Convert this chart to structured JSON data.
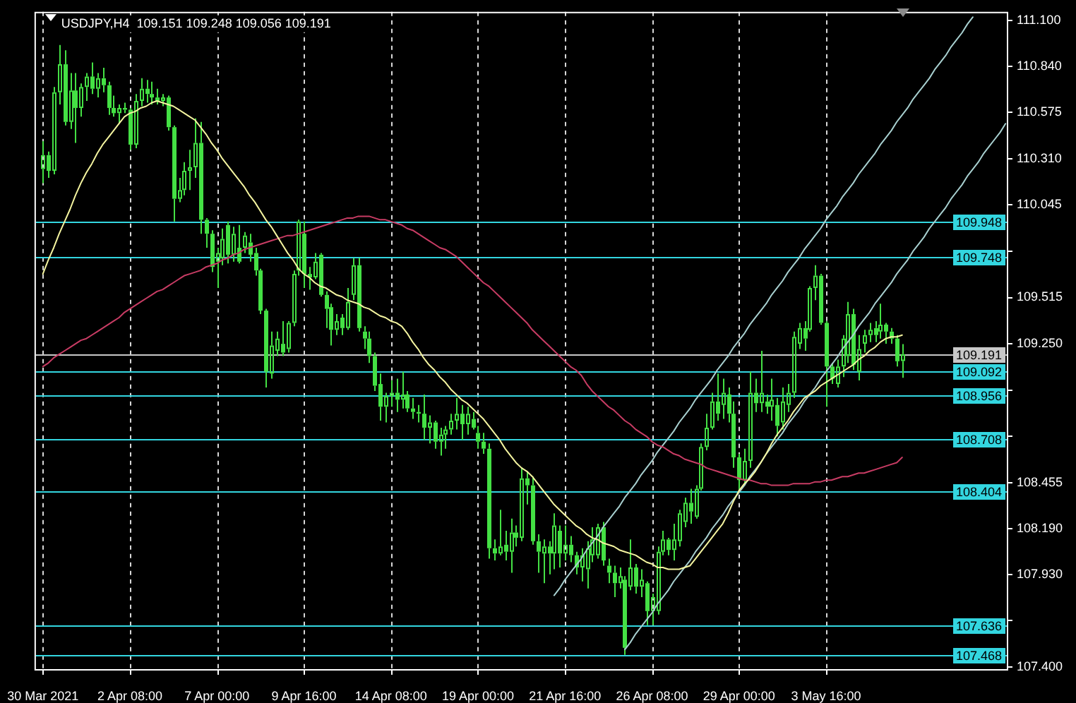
{
  "chart_data": {
    "type": "candlestick",
    "title": "USDJPY,H4  109.151 109.248 109.056 109.191",
    "categories": [
      "30 Mar 2021",
      null,
      null,
      null,
      null,
      null,
      null,
      null,
      null,
      null,
      null,
      null,
      null,
      null,
      null,
      null,
      "2 Apr 08:00",
      null,
      null,
      null,
      null,
      null,
      null,
      null,
      null,
      null,
      null,
      null,
      null,
      null,
      null,
      null,
      "7 Apr 00:00",
      null,
      null,
      null,
      null,
      null,
      null,
      null,
      null,
      null,
      null,
      null,
      null,
      null,
      null,
      null,
      "9 Apr 16:00",
      null,
      null,
      null,
      null,
      null,
      null,
      null,
      null,
      null,
      null,
      null,
      null,
      null,
      null,
      null,
      "14 Apr 08:00",
      null,
      null,
      null,
      null,
      null,
      null,
      null,
      null,
      null,
      null,
      null,
      null,
      null,
      null,
      null,
      "19 Apr 00:00",
      null,
      null,
      null,
      null,
      null,
      null,
      null,
      null,
      null,
      null,
      null,
      null,
      null,
      null,
      null,
      "21 Apr 16:00",
      null,
      null,
      null,
      null,
      null,
      null,
      null,
      null,
      null,
      null,
      null,
      null,
      null,
      null,
      null,
      "26 Apr 08:00",
      null,
      null,
      null,
      null,
      null,
      null,
      null,
      null,
      null,
      null,
      null,
      null,
      null,
      null,
      null,
      "29 Apr 00:00",
      null,
      null,
      null,
      null,
      null,
      null,
      null,
      null,
      null,
      null,
      null,
      null,
      null,
      null,
      null,
      "3 May 16:00",
      null,
      null,
      null,
      null,
      null,
      null,
      null,
      null,
      null,
      null,
      null,
      null,
      null,
      null,
      null,
      null,
      null,
      null,
      null,
      null,
      null,
      null,
      null,
      null,
      null,
      null,
      null,
      null,
      null,
      null,
      null,
      null,
      null
    ],
    "color": "#44e044",
    "ohlc": [
      [
        110.25,
        110.41,
        110.17,
        110.33
      ],
      [
        110.33,
        110.35,
        110.2,
        110.24
      ],
      [
        110.24,
        110.72,
        110.22,
        110.69
      ],
      [
        110.69,
        110.96,
        110.62,
        110.85
      ],
      [
        110.85,
        110.93,
        110.5,
        110.52
      ],
      [
        110.52,
        110.8,
        110.48,
        110.7
      ],
      [
        110.7,
        110.8,
        110.4,
        110.6
      ],
      [
        110.6,
        110.74,
        110.55,
        110.72
      ],
      [
        110.72,
        110.8,
        110.64,
        110.78
      ],
      [
        110.78,
        110.86,
        110.68,
        110.71
      ],
      [
        110.71,
        110.8,
        110.66,
        110.77
      ],
      [
        110.77,
        110.83,
        110.69,
        110.73
      ],
      [
        110.73,
        110.75,
        110.56,
        110.6
      ],
      [
        110.6,
        110.67,
        110.55,
        110.57
      ],
      [
        110.57,
        110.62,
        110.51,
        110.6
      ],
      [
        110.6,
        110.63,
        110.57,
        110.59
      ],
      [
        110.59,
        110.6,
        110.36,
        110.39
      ],
      [
        110.39,
        110.68,
        110.37,
        110.64
      ],
      [
        110.64,
        110.77,
        110.61,
        110.71
      ],
      [
        110.71,
        110.76,
        110.63,
        110.68
      ],
      [
        110.68,
        110.75,
        110.62,
        110.66
      ],
      [
        110.66,
        110.71,
        110.62,
        110.64
      ],
      [
        110.64,
        110.68,
        110.61,
        110.66
      ],
      [
        110.66,
        110.67,
        110.47,
        110.49
      ],
      [
        110.49,
        110.5,
        109.95,
        110.08
      ],
      [
        110.08,
        110.2,
        110.06,
        110.13
      ],
      [
        110.13,
        110.29,
        110.1,
        110.24
      ],
      [
        110.24,
        110.36,
        110.13,
        110.26
      ],
      [
        110.26,
        110.54,
        110.2,
        110.4
      ],
      [
        110.4,
        110.52,
        109.88,
        109.96
      ],
      [
        109.96,
        109.97,
        109.8,
        109.88
      ],
      [
        109.88,
        109.9,
        109.66,
        109.69
      ],
      [
        109.72,
        109.8,
        109.57,
        109.77
      ],
      [
        109.74,
        109.91,
        109.7,
        109.85
      ],
      [
        109.93,
        109.95,
        109.71,
        109.76
      ],
      [
        109.76,
        109.92,
        109.72,
        109.88
      ],
      [
        109.8,
        109.93,
        109.71,
        109.72
      ],
      [
        109.8,
        109.89,
        109.77,
        109.87
      ],
      [
        109.83,
        109.88,
        109.72,
        109.76
      ],
      [
        109.77,
        109.8,
        109.64,
        109.67
      ],
      [
        109.67,
        109.68,
        109.42,
        109.44
      ],
      [
        109.44,
        109.45,
        109.0,
        109.09
      ],
      [
        109.08,
        109.32,
        109.05,
        109.24
      ],
      [
        109.21,
        109.32,
        109.18,
        109.28
      ],
      [
        109.25,
        109.38,
        109.18,
        109.2
      ],
      [
        109.22,
        109.38,
        109.2,
        109.37
      ],
      [
        109.37,
        109.67,
        109.35,
        109.65
      ],
      [
        109.67,
        109.96,
        109.64,
        109.95
      ],
      [
        109.88,
        109.95,
        109.57,
        109.65
      ],
      [
        109.65,
        109.69,
        109.56,
        109.63
      ],
      [
        109.63,
        109.77,
        109.62,
        109.72
      ],
      [
        109.76,
        109.77,
        109.52,
        109.53
      ],
      [
        109.53,
        109.55,
        109.34,
        109.45
      ],
      [
        109.46,
        109.48,
        109.24,
        109.33
      ],
      [
        109.33,
        109.42,
        109.3,
        109.38
      ],
      [
        109.4,
        109.42,
        109.3,
        109.34
      ],
      [
        109.34,
        109.57,
        109.33,
        109.49
      ],
      [
        109.53,
        109.74,
        109.5,
        109.7
      ],
      [
        109.7,
        109.74,
        109.32,
        109.34
      ],
      [
        109.32,
        109.35,
        109.22,
        109.28
      ],
      [
        109.28,
        109.32,
        109.14,
        109.18
      ],
      [
        109.18,
        109.2,
        108.98,
        109.01
      ],
      [
        109.02,
        109.08,
        108.81,
        108.89
      ],
      [
        108.89,
        108.97,
        108.8,
        108.95
      ],
      [
        108.95,
        109.04,
        108.89,
        108.97
      ],
      [
        108.97,
        109.05,
        108.86,
        108.93
      ],
      [
        108.93,
        109.09,
        108.88,
        108.96
      ],
      [
        108.96,
        108.98,
        108.86,
        108.88
      ],
      [
        108.88,
        108.94,
        108.82,
        108.86
      ],
      [
        108.86,
        108.9,
        108.8,
        108.85
      ],
      [
        108.85,
        108.96,
        108.7,
        108.77
      ],
      [
        108.77,
        108.84,
        108.68,
        108.8
      ],
      [
        108.8,
        108.81,
        108.65,
        108.69
      ],
      [
        108.69,
        108.77,
        108.61,
        108.73
      ],
      [
        108.73,
        108.78,
        108.65,
        108.76
      ],
      [
        108.76,
        108.85,
        108.73,
        108.81
      ],
      [
        108.81,
        108.94,
        108.76,
        108.85
      ],
      [
        108.85,
        108.9,
        108.7,
        108.79
      ],
      [
        108.79,
        108.89,
        108.73,
        108.85
      ],
      [
        108.82,
        108.86,
        108.76,
        108.77
      ],
      [
        108.74,
        108.78,
        108.65,
        108.69
      ],
      [
        108.69,
        108.74,
        108.62,
        108.65
      ],
      [
        108.65,
        108.68,
        108.02,
        108.08
      ],
      [
        108.08,
        108.13,
        108.01,
        108.05
      ],
      [
        108.05,
        108.3,
        108.04,
        108.09
      ],
      [
        108.1,
        108.18,
        108.01,
        108.06
      ],
      [
        108.06,
        108.25,
        107.94,
        108.17
      ],
      [
        108.17,
        108.21,
        108.09,
        108.14
      ],
      [
        108.14,
        108.54,
        108.12,
        108.48
      ],
      [
        108.48,
        108.52,
        108.33,
        108.44
      ],
      [
        108.44,
        108.49,
        108.1,
        108.12
      ],
      [
        108.12,
        108.16,
        107.94,
        108.06
      ],
      [
        108.05,
        108.13,
        107.88,
        108.09
      ],
      [
        108.09,
        108.12,
        107.93,
        108.05
      ],
      [
        108.05,
        108.28,
        107.96,
        108.21
      ],
      [
        108.18,
        108.21,
        107.97,
        108.05
      ],
      [
        108.05,
        108.21,
        108.01,
        108.1
      ],
      [
        108.1,
        108.15,
        108.0,
        108.04
      ],
      [
        108.04,
        108.06,
        107.93,
        107.97
      ],
      [
        107.97,
        108.08,
        107.89,
        108.04
      ],
      [
        107.96,
        108.12,
        107.85,
        108.08
      ],
      [
        108.04,
        108.2,
        108.0,
        108.13
      ],
      [
        108.04,
        108.22,
        108.02,
        108.2
      ],
      [
        108.2,
        108.23,
        107.98,
        108.01
      ],
      [
        107.98,
        108.02,
        107.88,
        107.94
      ],
      [
        107.94,
        107.98,
        107.8,
        107.88
      ],
      [
        107.88,
        107.97,
        107.85,
        107.92
      ],
      [
        107.9,
        107.92,
        107.47,
        107.51
      ],
      [
        107.86,
        108.13,
        107.84,
        107.97
      ],
      [
        107.97,
        107.99,
        107.82,
        107.86
      ],
      [
        107.86,
        107.96,
        107.8,
        107.9
      ],
      [
        107.88,
        107.89,
        107.64,
        107.72
      ],
      [
        107.72,
        107.82,
        107.64,
        107.8
      ],
      [
        107.72,
        108.09,
        107.7,
        108.06
      ],
      [
        108.06,
        108.18,
        108.04,
        108.13
      ],
      [
        108.13,
        108.14,
        108.04,
        108.07
      ],
      [
        108.07,
        108.22,
        108.01,
        108.13
      ],
      [
        108.12,
        108.3,
        108.09,
        108.28
      ],
      [
        108.23,
        108.37,
        108.2,
        108.34
      ],
      [
        108.34,
        108.42,
        108.22,
        108.29
      ],
      [
        108.26,
        108.44,
        108.25,
        108.42
      ],
      [
        108.42,
        108.68,
        108.41,
        108.66
      ],
      [
        108.66,
        108.85,
        108.64,
        108.77
      ],
      [
        108.77,
        108.97,
        108.76,
        108.92
      ],
      [
        108.92,
        109.08,
        108.81,
        108.85
      ],
      [
        108.9,
        109.05,
        108.82,
        108.97
      ],
      [
        108.96,
        109.0,
        108.8,
        108.85
      ],
      [
        108.85,
        108.92,
        108.54,
        108.6
      ],
      [
        108.6,
        108.62,
        108.4,
        108.47
      ],
      [
        108.47,
        108.65,
        108.44,
        108.58
      ],
      [
        108.58,
        109.09,
        108.54,
        108.97
      ],
      [
        108.97,
        109.05,
        108.86,
        108.91
      ],
      [
        108.91,
        109.21,
        108.86,
        108.97
      ],
      [
        108.92,
        108.96,
        108.85,
        108.89
      ],
      [
        108.89,
        109.05,
        108.81,
        108.93
      ],
      [
        108.9,
        108.94,
        108.72,
        108.78
      ],
      [
        108.8,
        109.0,
        108.76,
        108.92
      ],
      [
        108.9,
        109.02,
        108.86,
        108.97
      ],
      [
        108.97,
        109.32,
        108.94,
        109.29
      ],
      [
        109.25,
        109.37,
        109.22,
        109.34
      ],
      [
        109.34,
        109.38,
        109.21,
        109.28
      ],
      [
        109.33,
        109.58,
        109.32,
        109.57
      ],
      [
        109.57,
        109.7,
        109.5,
        109.64
      ],
      [
        109.64,
        109.65,
        109.36,
        109.37
      ],
      [
        109.37,
        109.38,
        108.89,
        109.12
      ],
      [
        109.12,
        109.14,
        109.02,
        109.05
      ],
      [
        109.02,
        109.16,
        109.0,
        109.12
      ],
      [
        109.12,
        109.3,
        109.06,
        109.28
      ],
      [
        109.18,
        109.49,
        109.14,
        109.42
      ],
      [
        109.42,
        109.45,
        109.1,
        109.13
      ],
      [
        109.09,
        109.3,
        109.04,
        109.22
      ],
      [
        109.25,
        109.33,
        109.2,
        109.3
      ],
      [
        109.3,
        109.37,
        109.26,
        109.33
      ],
      [
        109.34,
        109.38,
        109.26,
        109.3
      ],
      [
        109.32,
        109.48,
        109.28,
        109.36
      ],
      [
        109.36,
        109.37,
        109.25,
        109.32
      ],
      [
        109.32,
        109.34,
        109.25,
        109.28
      ],
      [
        109.28,
        109.3,
        109.12,
        109.15
      ],
      [
        109.151,
        109.248,
        109.056,
        109.191
      ],
      null,
      null,
      null,
      null,
      null,
      null,
      null,
      null,
      null,
      null,
      null,
      null,
      null,
      null,
      null,
      null,
      null,
      null,
      null
    ],
    "series": [
      {
        "type": "line",
        "color": "#f5f5a0",
        "values": [
          109.65,
          109.73,
          109.8,
          109.88,
          109.95,
          110.02,
          110.1,
          110.17,
          110.23,
          110.28,
          110.34,
          110.39,
          110.43,
          110.47,
          110.51,
          110.55,
          110.57,
          110.58,
          110.6,
          110.61,
          110.63,
          110.64,
          110.63,
          110.62,
          110.61,
          110.59,
          110.57,
          110.55,
          110.53,
          110.49,
          110.45,
          110.4,
          110.36,
          110.31,
          110.27,
          110.23,
          110.19,
          110.15,
          110.1,
          110.06,
          110.01,
          109.96,
          109.92,
          109.87,
          109.82,
          109.77,
          109.73,
          109.68,
          109.65,
          109.63,
          109.6,
          109.58,
          109.57,
          109.55,
          109.53,
          109.52,
          109.5,
          109.49,
          109.48,
          109.46,
          109.45,
          109.43,
          109.41,
          109.4,
          109.38,
          109.37,
          109.35,
          109.31,
          109.26,
          109.22,
          109.17,
          109.13,
          109.1,
          109.06,
          109.03,
          108.99,
          108.96,
          108.93,
          108.91,
          108.88,
          108.85,
          108.82,
          108.78,
          108.74,
          108.7,
          108.65,
          108.61,
          108.57,
          108.54,
          108.52,
          108.49,
          108.45,
          108.41,
          108.37,
          108.33,
          108.3,
          108.27,
          108.24,
          108.21,
          108.19,
          108.16,
          108.14,
          108.13,
          108.11,
          108.1,
          108.09,
          108.07,
          108.06,
          108.05,
          108.04,
          108.02,
          108.0,
          107.99,
          107.97,
          107.97,
          107.96,
          107.96,
          107.96,
          107.97,
          107.98,
          108.02,
          108.06,
          108.1,
          108.14,
          108.18,
          108.22,
          108.28,
          108.35,
          108.41,
          108.45,
          108.48,
          108.52,
          108.57,
          108.62,
          108.68,
          108.73,
          108.77,
          108.81,
          108.86,
          108.9,
          108.94,
          108.96,
          108.98,
          109.01,
          109.03,
          109.05,
          109.07,
          109.09,
          109.11,
          109.13,
          109.16,
          109.18,
          109.21,
          109.23,
          109.26,
          109.28,
          109.29,
          109.29,
          109.3,
          null,
          null,
          null,
          null,
          null,
          null,
          null,
          null,
          null,
          null,
          null,
          null,
          null,
          null,
          null,
          null,
          null,
          null,
          null
        ]
      },
      {
        "type": "line",
        "color": "#c83c64",
        "values": [
          109.12,
          109.14,
          109.17,
          109.19,
          109.21,
          109.23,
          109.25,
          109.27,
          109.28,
          109.3,
          109.32,
          109.34,
          109.36,
          109.38,
          109.4,
          109.43,
          109.45,
          109.47,
          109.49,
          109.51,
          109.53,
          109.55,
          109.56,
          109.58,
          109.6,
          109.62,
          109.64,
          109.65,
          109.66,
          109.67,
          109.69,
          109.7,
          109.71,
          109.73,
          109.74,
          109.76,
          109.77,
          109.79,
          109.8,
          109.81,
          109.82,
          109.83,
          109.84,
          109.85,
          109.86,
          109.87,
          109.87,
          109.88,
          109.89,
          109.9,
          109.91,
          109.92,
          109.93,
          109.94,
          109.95,
          109.96,
          109.97,
          109.97,
          109.98,
          109.98,
          109.98,
          109.97,
          109.96,
          109.96,
          109.95,
          109.94,
          109.93,
          109.91,
          109.9,
          109.88,
          109.86,
          109.84,
          109.82,
          109.8,
          109.79,
          109.77,
          109.75,
          109.72,
          109.69,
          109.66,
          109.63,
          109.6,
          109.58,
          109.55,
          109.52,
          109.49,
          109.46,
          109.43,
          109.4,
          109.37,
          109.33,
          109.3,
          109.27,
          109.24,
          109.21,
          109.18,
          109.15,
          109.12,
          109.1,
          109.07,
          109.02,
          108.98,
          108.95,
          108.92,
          108.89,
          108.87,
          108.84,
          108.81,
          108.79,
          108.76,
          108.74,
          108.72,
          108.69,
          108.67,
          108.66,
          108.64,
          108.62,
          108.61,
          108.59,
          108.58,
          108.57,
          108.56,
          108.54,
          108.53,
          108.52,
          108.51,
          108.5,
          108.49,
          108.48,
          108.47,
          108.47,
          108.46,
          108.45,
          108.45,
          108.44,
          108.44,
          108.44,
          108.44,
          108.45,
          108.45,
          108.45,
          108.45,
          108.46,
          108.46,
          108.47,
          108.47,
          108.48,
          108.49,
          108.49,
          108.5,
          108.51,
          108.51,
          108.52,
          108.53,
          108.54,
          108.55,
          108.56,
          108.57,
          108.6,
          null,
          null,
          null,
          null,
          null,
          null,
          null,
          null,
          null,
          null,
          null,
          null,
          null,
          null,
          null,
          null,
          null,
          null,
          null
        ]
      },
      {
        "type": "line",
        "color": "#a8d0d0",
        "values": [
          null,
          null,
          null,
          null,
          null,
          null,
          null,
          null,
          null,
          null,
          null,
          null,
          null,
          null,
          null,
          null,
          null,
          null,
          null,
          null,
          null,
          null,
          null,
          null,
          null,
          null,
          null,
          null,
          null,
          null,
          null,
          null,
          null,
          null,
          null,
          null,
          null,
          null,
          null,
          null,
          null,
          null,
          null,
          null,
          null,
          null,
          null,
          null,
          null,
          null,
          null,
          null,
          null,
          null,
          null,
          null,
          null,
          null,
          null,
          null,
          null,
          null,
          null,
          null,
          null,
          null,
          null,
          null,
          null,
          null,
          null,
          null,
          null,
          null,
          null,
          null,
          null,
          null,
          null,
          null,
          null,
          null,
          null,
          null,
          null,
          null,
          null,
          null,
          null,
          null,
          null,
          null,
          null,
          null,
          107.81,
          107.85,
          107.9,
          107.94,
          107.98,
          108.02,
          108.07,
          108.11,
          108.15,
          108.2,
          108.24,
          108.28,
          108.32,
          108.37,
          108.41,
          108.45,
          108.5,
          108.54,
          108.58,
          108.63,
          108.67,
          108.71,
          108.75,
          108.8,
          108.84,
          108.88,
          108.93,
          108.97,
          109.01,
          109.05,
          109.1,
          109.14,
          109.18,
          109.23,
          109.27,
          109.31,
          109.36,
          109.4,
          109.44,
          109.48,
          109.53,
          109.57,
          109.61,
          109.66,
          109.7,
          109.74,
          109.79,
          109.83,
          109.87,
          109.91,
          109.96,
          110.0,
          110.04,
          110.09,
          110.13,
          110.17,
          110.22,
          110.26,
          110.3,
          110.34,
          110.39,
          110.43,
          110.47,
          110.52,
          110.56,
          110.6,
          110.65,
          110.69,
          110.73,
          110.77,
          110.82,
          110.86,
          110.9,
          110.95,
          110.99,
          111.03,
          111.08,
          111.12,
          null,
          null,
          null,
          null,
          null,
          null
        ]
      },
      {
        "type": "line",
        "color": "#a8d0d0",
        "values": [
          null,
          null,
          null,
          null,
          null,
          null,
          null,
          null,
          null,
          null,
          null,
          null,
          null,
          null,
          null,
          null,
          null,
          null,
          null,
          null,
          null,
          null,
          null,
          null,
          null,
          null,
          null,
          null,
          null,
          null,
          null,
          null,
          null,
          null,
          null,
          null,
          null,
          null,
          null,
          null,
          null,
          null,
          null,
          null,
          null,
          null,
          null,
          null,
          null,
          null,
          null,
          null,
          null,
          null,
          null,
          null,
          null,
          null,
          null,
          null,
          null,
          null,
          null,
          null,
          null,
          null,
          null,
          null,
          null,
          null,
          null,
          null,
          null,
          null,
          null,
          null,
          null,
          null,
          null,
          null,
          null,
          null,
          null,
          null,
          null,
          null,
          null,
          null,
          null,
          null,
          null,
          null,
          null,
          null,
          null,
          null,
          null,
          null,
          null,
          null,
          null,
          null,
          null,
          null,
          null,
          null,
          null,
          107.5,
          107.54,
          107.59,
          107.63,
          107.67,
          107.71,
          107.76,
          107.8,
          107.84,
          107.89,
          107.93,
          107.97,
          108.01,
          108.06,
          108.1,
          108.14,
          108.19,
          108.23,
          108.27,
          108.32,
          108.36,
          108.4,
          108.44,
          108.49,
          108.53,
          108.57,
          108.62,
          108.66,
          108.7,
          108.74,
          108.79,
          108.83,
          108.87,
          108.92,
          108.96,
          109.0,
          109.05,
          109.09,
          109.13,
          109.17,
          109.22,
          109.26,
          109.3,
          109.35,
          109.39,
          109.43,
          109.48,
          109.52,
          109.56,
          109.6,
          109.65,
          109.69,
          109.73,
          109.78,
          109.82,
          109.86,
          109.91,
          109.95,
          109.99,
          110.03,
          110.08,
          110.12,
          110.16,
          110.21,
          110.25,
          110.29,
          110.34,
          110.38,
          110.42,
          110.46,
          110.51
        ]
      }
    ],
    "ylim": [
      107.38,
      111.15
    ],
    "yticks": [
      {
        "value": 111.1,
        "label": "111.100"
      },
      {
        "value": 110.84,
        "label": "110.840"
      },
      {
        "value": 110.575,
        "label": "110.575"
      },
      {
        "value": 110.31,
        "label": "110.310"
      },
      {
        "value": 110.045,
        "label": "110.045"
      },
      {
        "value": 109.78,
        "label": null
      },
      {
        "value": 109.515,
        "label": "109.515"
      },
      {
        "value": 109.25,
        "label": "109.250"
      },
      {
        "value": 108.985,
        "label": null
      },
      {
        "value": 108.72,
        "label": null
      },
      {
        "value": 108.455,
        "label": "108.455"
      },
      {
        "value": 108.19,
        "label": "108.190"
      },
      {
        "value": 107.93,
        "label": "107.930"
      },
      {
        "value": 107.665,
        "label": null
      },
      {
        "value": 107.4,
        "label": "107.400"
      }
    ],
    "ref_lines": [
      {
        "axis": "y",
        "value": 109.948,
        "label": "109.948",
        "color": "#33d6e0"
      },
      {
        "axis": "y",
        "value": 109.748,
        "label": "109.748",
        "color": "#33d6e0"
      },
      {
        "axis": "y",
        "value": 109.191,
        "label": "109.191",
        "color": "#c8c8c8"
      },
      {
        "axis": "y",
        "value": 109.092,
        "label": "109.092",
        "color": "#33d6e0"
      },
      {
        "axis": "y",
        "value": 108.956,
        "label": "108.956",
        "color": "#33d6e0"
      },
      {
        "axis": "y",
        "value": 108.708,
        "label": "108.708",
        "color": "#33d6e0"
      },
      {
        "axis": "y",
        "value": 108.404,
        "label": "108.404",
        "color": "#33d6e0"
      },
      {
        "axis": "y",
        "value": 107.636,
        "label": "107.636",
        "color": "#33d6e0"
      },
      {
        "axis": "y",
        "value": 107.468,
        "label": "107.468",
        "color": "#33d6e0"
      }
    ],
    "grid": "x"
  }
}
